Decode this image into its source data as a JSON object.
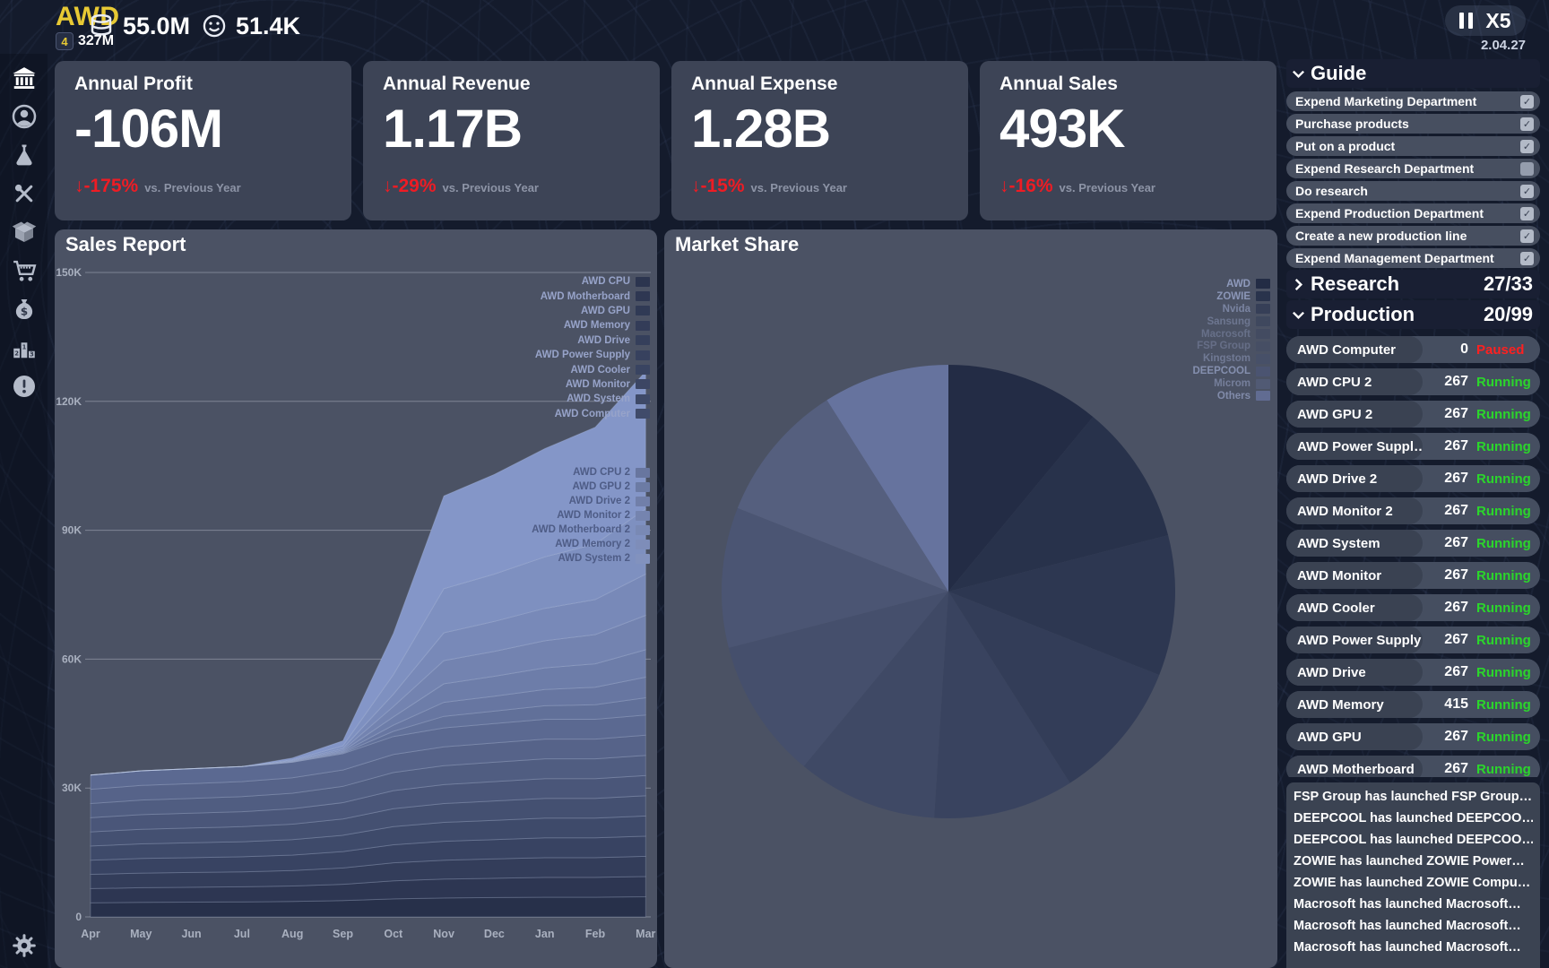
{
  "top_bar": {
    "company": "AWD",
    "badge_level": "4",
    "badge_value": "327M",
    "money": "55.0M",
    "reputation": "51.4K",
    "speed": "X5",
    "date": "2.04.27"
  },
  "sidebar": {
    "icons": [
      "bank-icon",
      "profile-icon",
      "research-flask-icon",
      "tools-icon",
      "products-box-icon",
      "cart-icon",
      "money-bag-icon",
      "ranking-icon",
      "alerts-icon"
    ],
    "bottom_icon": "settings-gear-icon"
  },
  "kpi_cards": [
    {
      "title": "Annual Profit",
      "value": "-106M",
      "delta": "↓-175%",
      "note": "vs. Previous Year"
    },
    {
      "title": "Annual Revenue",
      "value": "1.17B",
      "delta": "↓-29%",
      "note": "vs. Previous Year"
    },
    {
      "title": "Annual Expense",
      "value": "1.28B",
      "delta": "↓-15%",
      "note": "vs. Previous Year"
    },
    {
      "title": "Annual Sales",
      "value": "493K",
      "delta": "↓-16%",
      "note": "vs. Previous Year"
    }
  ],
  "sales": {
    "title": "Sales Report",
    "legend_primary": [
      "AWD CPU",
      "AWD Motherboard",
      "AWD GPU",
      "AWD Memory",
      "AWD Drive",
      "AWD Power Supply",
      "AWD Cooler",
      "AWD Monitor",
      "AWD System",
      "AWD Computer"
    ],
    "legend_secondary": [
      "AWD CPU 2",
      "AWD GPU 2",
      "AWD Drive 2",
      "AWD Monitor 2",
      "AWD Motherboard 2",
      "AWD Memory 2",
      "AWD System 2"
    ]
  },
  "market": {
    "title": "Market Share",
    "legend": [
      "AWD",
      "ZOWIE",
      "Nvida",
      "Sansung",
      "Macrosoft",
      "FSP Group",
      "Kingstom",
      "DEEPCOOL",
      "Microm",
      "Others"
    ],
    "legend_opacity": [
      1,
      0.95,
      0.7,
      0.5,
      0.42,
      0.4,
      0.55,
      0.85,
      0.62,
      0.8
    ]
  },
  "chart_data": [
    {
      "type": "area",
      "stacked": true,
      "title": "Sales Report",
      "x": [
        "Apr",
        "May",
        "Jun",
        "Jul",
        "Aug",
        "Sep",
        "Oct",
        "Nov",
        "Dec",
        "Jan",
        "Feb",
        "Mar"
      ],
      "y_ticks": [
        "0",
        "30K",
        "60K",
        "90K",
        "120K",
        "150K"
      ],
      "ylim": [
        0,
        150000
      ],
      "grid": true,
      "totals_k": [
        33,
        34,
        34.5,
        35,
        37,
        41,
        66,
        98,
        103,
        109,
        114,
        127
      ],
      "established_products_total_k": [
        33,
        34,
        34.5,
        35,
        36,
        38,
        42,
        44,
        45,
        46,
        46,
        47
      ],
      "new_products_total_k": [
        0,
        0,
        0,
        0,
        1,
        3,
        24,
        54,
        58,
        63,
        68,
        80
      ],
      "established_series_names": [
        "AWD CPU",
        "AWD Motherboard",
        "AWD GPU",
        "AWD Memory",
        "AWD Drive",
        "AWD Power Supply",
        "AWD Cooler",
        "AWD Monitor",
        "AWD System",
        "AWD Computer"
      ],
      "new_series_names": [
        "AWD CPU 2",
        "AWD GPU 2",
        "AWD Drive 2",
        "AWD Monitor 2",
        "AWD Motherboard 2",
        "AWD Memory 2",
        "AWD System 2"
      ],
      "new_series_weights": [
        0.05,
        0.06,
        0.08,
        0.1,
        0.12,
        0.19,
        0.4
      ],
      "color_bottom": "#27304a",
      "color_top": "#8496c8"
    },
    {
      "type": "pie",
      "title": "Market Share",
      "labels": [
        "AWD",
        "ZOWIE",
        "Nvida",
        "Sansung",
        "Macrosoft",
        "FSP Group",
        "Kingstom",
        "DEEPCOOL",
        "Microm",
        "Others"
      ],
      "values": [
        11,
        10,
        10,
        10,
        10,
        10,
        10,
        10,
        10,
        9
      ],
      "colors": [
        "#232c45",
        "#28324b",
        "#2d3751",
        "#333d58",
        "#39435f",
        "#3f4965",
        "#454f6c",
        "#4b5573",
        "#555f7e",
        "#66739e"
      ],
      "legend_position": "top-right"
    }
  ],
  "guide": {
    "title": "Guide",
    "items": [
      {
        "label": "Expend Marketing Department",
        "checked": true
      },
      {
        "label": "Purchase products",
        "checked": true
      },
      {
        "label": "Put on a product",
        "checked": true
      },
      {
        "label": "Expend Research Department",
        "checked": false
      },
      {
        "label": "Do research",
        "checked": true
      },
      {
        "label": "Expend Production Department",
        "checked": true
      },
      {
        "label": "Create a new production line",
        "checked": true
      },
      {
        "label": "Expend Management Department",
        "checked": true
      }
    ]
  },
  "research": {
    "label": "Research",
    "count": "27/33"
  },
  "production": {
    "label": "Production",
    "count": "20/99",
    "rows": [
      {
        "name": "AWD Computer",
        "qty": "0",
        "status": "Paused"
      },
      {
        "name": "AWD CPU 2",
        "qty": "267",
        "status": "Running"
      },
      {
        "name": "AWD GPU 2",
        "qty": "267",
        "status": "Running"
      },
      {
        "name": "AWD Power Suppl…",
        "qty": "267",
        "status": "Running"
      },
      {
        "name": "AWD Drive 2",
        "qty": "267",
        "status": "Running"
      },
      {
        "name": "AWD Monitor 2",
        "qty": "267",
        "status": "Running"
      },
      {
        "name": "AWD System",
        "qty": "267",
        "status": "Running"
      },
      {
        "name": "AWD Monitor",
        "qty": "267",
        "status": "Running"
      },
      {
        "name": "AWD Cooler",
        "qty": "267",
        "status": "Running"
      },
      {
        "name": "AWD Power Supply",
        "qty": "267",
        "status": "Running"
      },
      {
        "name": "AWD Drive",
        "qty": "267",
        "status": "Running"
      },
      {
        "name": "AWD Memory",
        "qty": "415",
        "status": "Running"
      },
      {
        "name": "AWD GPU",
        "qty": "267",
        "status": "Running"
      },
      {
        "name": "AWD Motherboard",
        "qty": "267",
        "status": "Running"
      }
    ]
  },
  "news": {
    "items": [
      "FSP Group has launched FSP Group…",
      "DEEPCOOL has launched DEEPCOO…",
      "DEEPCOOL has launched DEEPCOO…",
      "ZOWIE has launched ZOWIE Power…",
      "ZOWIE has launched ZOWIE Compu…",
      "Macrosoft has launched Macrosoft…",
      "Macrosoft has launched Macrosoft…",
      "Macrosoft has launched Macrosoft…"
    ]
  },
  "colors": {
    "gold": "#e7c934",
    "red": "#ee1c24",
    "green": "#2bd62b",
    "paused_red": "#ff2020",
    "page_bg": "#141b2c",
    "kpi_card_bg": "#3d4456",
    "big_card_bg": "#4b5264",
    "pill_bg": "#474f60",
    "grid_line": "rgba(235,240,252,0.32)",
    "axis_text": "#a9b0bf"
  }
}
